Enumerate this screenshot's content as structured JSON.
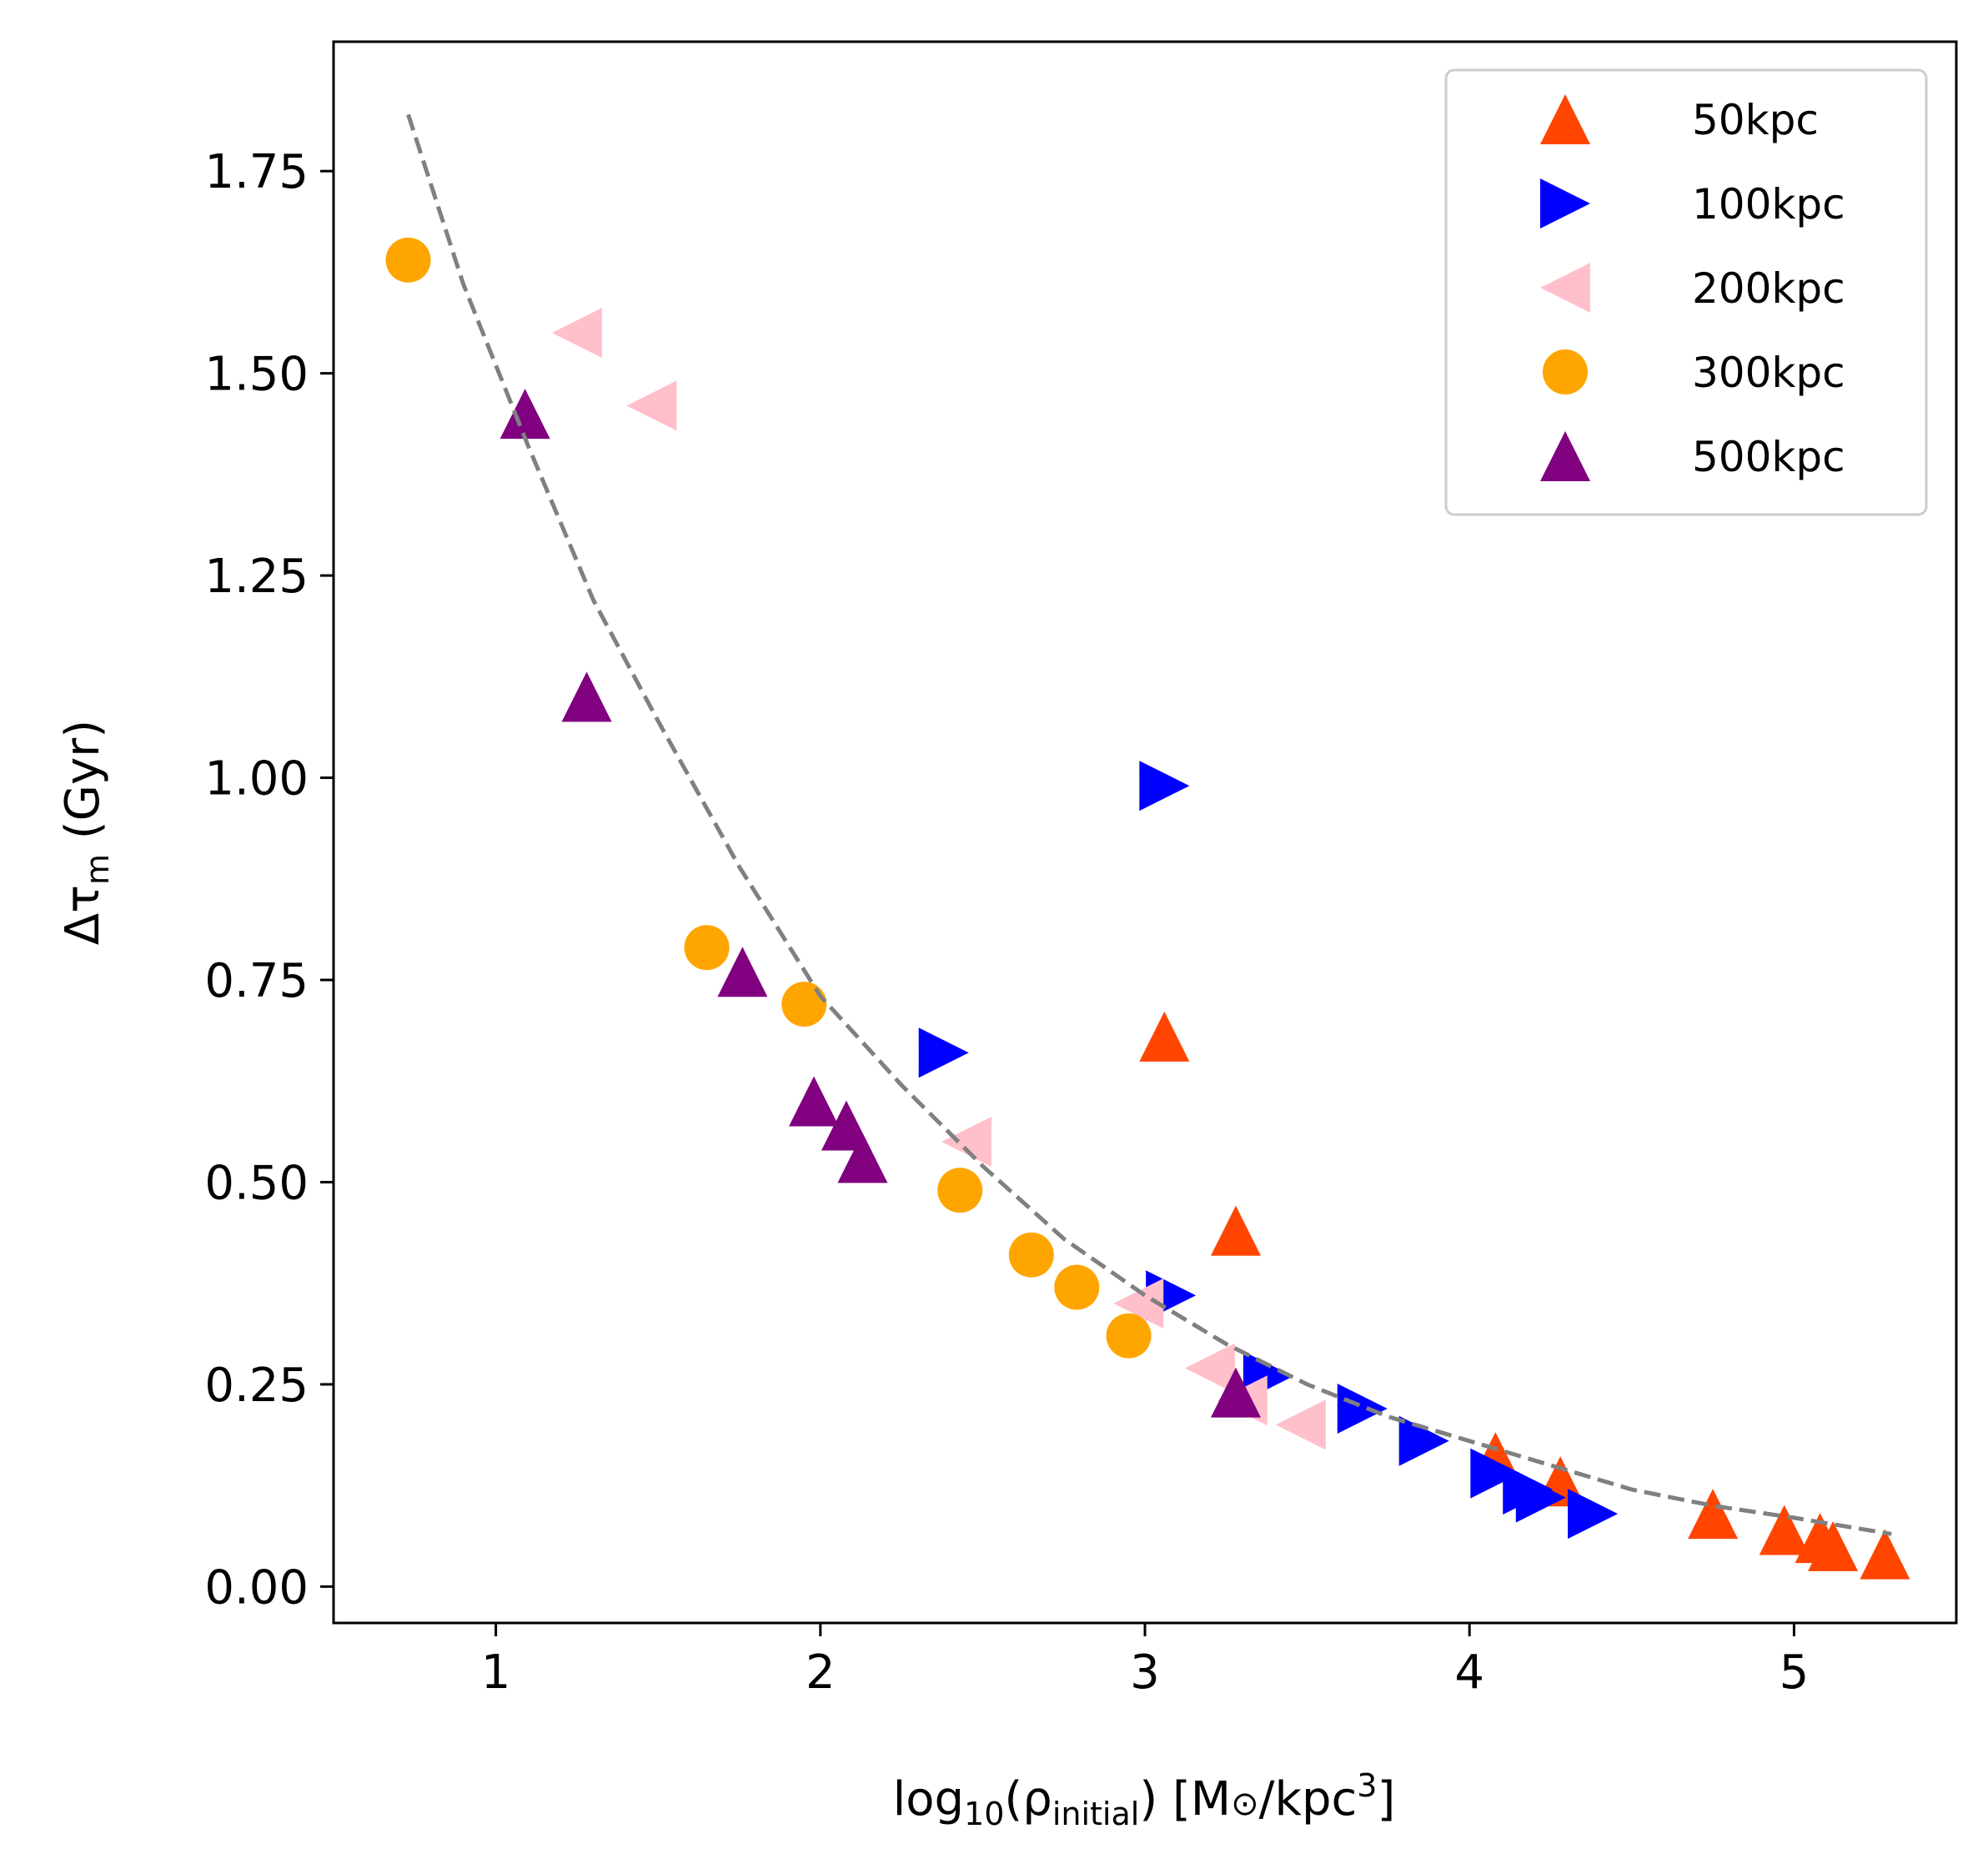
{
  "chart_data": {
    "type": "scatter",
    "title": "",
    "xlabel": {
      "base": "log",
      "base_sub": "10",
      "open": "(ρ",
      "sub": "initial",
      "close": ") [M",
      "sun": "⊙",
      "unit": "/kpc",
      "sup": "3",
      "end": "]"
    },
    "ylabel": {
      "base": "Δτ",
      "sub": "m",
      "unit": " (Gyr)"
    },
    "xlim": [
      0.5,
      5.5
    ],
    "ylim": [
      -0.045,
      1.91
    ],
    "xticks": [
      1,
      2,
      3,
      4,
      5
    ],
    "xtick_labels": [
      "1",
      "2",
      "3",
      "4",
      "5"
    ],
    "yticks": [
      0.0,
      0.25,
      0.5,
      0.75,
      1.0,
      1.25,
      1.5,
      1.75
    ],
    "ytick_labels": [
      "0.00",
      "0.25",
      "0.50",
      "0.75",
      "1.00",
      "1.25",
      "1.50",
      "1.75"
    ],
    "grid": false,
    "legend_position": "top-right",
    "series": [
      {
        "name": "50kpc",
        "marker": "triangle-up",
        "color": "#ff4500",
        "points": [
          [
            3.06,
            0.68
          ],
          [
            3.28,
            0.44
          ],
          [
            4.08,
            0.16
          ],
          [
            4.28,
            0.13
          ],
          [
            4.75,
            0.09
          ],
          [
            4.97,
            0.07
          ],
          [
            5.08,
            0.06
          ],
          [
            5.12,
            0.05
          ],
          [
            5.28,
            0.04
          ]
        ]
      },
      {
        "name": "100kpc",
        "marker": "triangle-right",
        "color": "#0000ff",
        "points": [
          [
            3.06,
            0.99
          ],
          [
            2.38,
            0.66
          ],
          [
            3.08,
            0.36
          ],
          [
            3.38,
            0.26
          ],
          [
            3.67,
            0.22
          ],
          [
            3.86,
            0.18
          ],
          [
            4.08,
            0.14
          ],
          [
            4.18,
            0.12
          ],
          [
            4.22,
            0.11
          ],
          [
            4.38,
            0.09
          ]
        ]
      },
      {
        "name": "200kpc",
        "marker": "triangle-left",
        "color": "#ffc0cb",
        "points": [
          [
            1.25,
            1.55
          ],
          [
            1.48,
            1.46
          ],
          [
            2.45,
            0.55
          ],
          [
            2.98,
            0.35
          ],
          [
            3.2,
            0.27
          ],
          [
            3.3,
            0.23
          ],
          [
            3.48,
            0.2
          ]
        ]
      },
      {
        "name": "300kpc",
        "marker": "circle",
        "color": "#ffa500",
        "points": [
          [
            0.73,
            1.64
          ],
          [
            1.65,
            0.79
          ],
          [
            1.95,
            0.72
          ],
          [
            2.43,
            0.49
          ],
          [
            2.65,
            0.41
          ],
          [
            2.79,
            0.37
          ],
          [
            2.95,
            0.31
          ]
        ]
      },
      {
        "name": "500kpc",
        "marker": "triangle-up",
        "color": "#800080",
        "points": [
          [
            1.09,
            1.45
          ],
          [
            1.28,
            1.1
          ],
          [
            1.76,
            0.76
          ],
          [
            1.98,
            0.6
          ],
          [
            2.08,
            0.57
          ],
          [
            2.13,
            0.53
          ],
          [
            3.28,
            0.24
          ]
        ]
      }
    ],
    "fit_curve": {
      "style": "dashed",
      "color": "#808080",
      "x": [
        0.73,
        0.9,
        1.1,
        1.3,
        1.5,
        1.75,
        2.0,
        2.25,
        2.5,
        2.75,
        3.0,
        3.25,
        3.5,
        3.75,
        4.0,
        4.25,
        4.5,
        4.75,
        5.0,
        5.3
      ],
      "y": [
        1.82,
        1.61,
        1.41,
        1.22,
        1.07,
        0.89,
        0.73,
        0.62,
        0.52,
        0.43,
        0.36,
        0.3,
        0.25,
        0.21,
        0.18,
        0.15,
        0.12,
        0.1,
        0.085,
        0.065
      ]
    }
  }
}
